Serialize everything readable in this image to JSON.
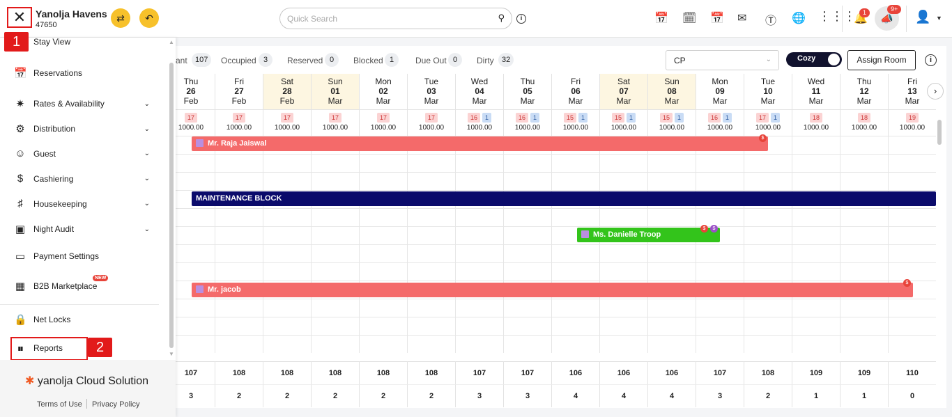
{
  "header": {
    "hotel_name": "Yanolja Havens",
    "hotel_id": "47650",
    "search_placeholder": "Quick Search",
    "notification_count": "1",
    "announcement_count": "9+"
  },
  "sidebar": {
    "items": [
      {
        "label": "Stay View",
        "icon": "stay-view-icon",
        "chevron": false
      },
      {
        "label": "Reservations",
        "icon": "calendar-icon",
        "chevron": false
      },
      {
        "label": "Rates & Availability",
        "icon": "rates-icon",
        "chevron": true
      },
      {
        "label": "Distribution",
        "icon": "distribution-icon",
        "chevron": true
      },
      {
        "label": "Guest",
        "icon": "guest-icon",
        "chevron": true
      },
      {
        "label": "Cashiering",
        "icon": "dollar-icon",
        "chevron": true
      },
      {
        "label": "Housekeeping",
        "icon": "housekeeping-icon",
        "chevron": true
      },
      {
        "label": "Night Audit",
        "icon": "night-audit-icon",
        "chevron": true
      },
      {
        "label": "Payment Settings",
        "icon": "payment-icon",
        "chevron": false
      },
      {
        "label": "B2B Marketplace",
        "icon": "b2b-icon",
        "chevron": false
      },
      {
        "label": "Net Locks",
        "icon": "lock-icon",
        "chevron": false
      },
      {
        "label": "Reports",
        "icon": "reports-icon",
        "chevron": false
      }
    ],
    "new_badge": "NEW",
    "brand": "yanolja Cloud Solution",
    "terms": "Terms of Use",
    "privacy": "Privacy Policy"
  },
  "annotations": {
    "marker1": "1",
    "marker2": "2"
  },
  "stats": [
    {
      "label": "ant",
      "value": "107"
    },
    {
      "label": "Occupied",
      "value": "3"
    },
    {
      "label": "Reserved",
      "value": "0"
    },
    {
      "label": "Blocked",
      "value": "1"
    },
    {
      "label": "Due Out",
      "value": "0"
    },
    {
      "label": "Dirty",
      "value": "32"
    }
  ],
  "toolbar": {
    "rate_plan": "CP",
    "view_toggle": "Cozy",
    "assign_room": "Assign Room"
  },
  "dates": [
    {
      "dow": "Thu",
      "day": "26",
      "mon": "Feb",
      "weekend": false,
      "avail": "17",
      "blocked": "",
      "rate": "1000.00",
      "vacant": "107",
      "occupied": "3"
    },
    {
      "dow": "Fri",
      "day": "27",
      "mon": "Feb",
      "weekend": false,
      "avail": "17",
      "blocked": "",
      "rate": "1000.00",
      "vacant": "108",
      "occupied": "2"
    },
    {
      "dow": "Sat",
      "day": "28",
      "mon": "Feb",
      "weekend": true,
      "avail": "17",
      "blocked": "",
      "rate": "1000.00",
      "vacant": "108",
      "occupied": "2"
    },
    {
      "dow": "Sun",
      "day": "01",
      "mon": "Mar",
      "weekend": true,
      "avail": "17",
      "blocked": "",
      "rate": "1000.00",
      "vacant": "108",
      "occupied": "2"
    },
    {
      "dow": "Mon",
      "day": "02",
      "mon": "Mar",
      "weekend": false,
      "avail": "17",
      "blocked": "",
      "rate": "1000.00",
      "vacant": "108",
      "occupied": "2"
    },
    {
      "dow": "Tue",
      "day": "03",
      "mon": "Mar",
      "weekend": false,
      "avail": "17",
      "blocked": "",
      "rate": "1000.00",
      "vacant": "108",
      "occupied": "2"
    },
    {
      "dow": "Wed",
      "day": "04",
      "mon": "Mar",
      "weekend": false,
      "avail": "16",
      "blocked": "1",
      "rate": "1000.00",
      "vacant": "107",
      "occupied": "3"
    },
    {
      "dow": "Thu",
      "day": "05",
      "mon": "Mar",
      "weekend": false,
      "avail": "16",
      "blocked": "1",
      "rate": "1000.00",
      "vacant": "107",
      "occupied": "3"
    },
    {
      "dow": "Fri",
      "day": "06",
      "mon": "Mar",
      "weekend": false,
      "avail": "15",
      "blocked": "1",
      "rate": "1000.00",
      "vacant": "106",
      "occupied": "4"
    },
    {
      "dow": "Sat",
      "day": "07",
      "mon": "Mar",
      "weekend": true,
      "avail": "15",
      "blocked": "1",
      "rate": "1000.00",
      "vacant": "106",
      "occupied": "4"
    },
    {
      "dow": "Sun",
      "day": "08",
      "mon": "Mar",
      "weekend": true,
      "avail": "15",
      "blocked": "1",
      "rate": "1000.00",
      "vacant": "106",
      "occupied": "4"
    },
    {
      "dow": "Mon",
      "day": "09",
      "mon": "Mar",
      "weekend": false,
      "avail": "16",
      "blocked": "1",
      "rate": "1000.00",
      "vacant": "107",
      "occupied": "3"
    },
    {
      "dow": "Tue",
      "day": "10",
      "mon": "Mar",
      "weekend": false,
      "avail": "17",
      "blocked": "1",
      "rate": "1000.00",
      "vacant": "108",
      "occupied": "2"
    },
    {
      "dow": "Wed",
      "day": "11",
      "mon": "Mar",
      "weekend": false,
      "avail": "18",
      "blocked": "",
      "rate": "1000.00",
      "vacant": "109",
      "occupied": "1"
    },
    {
      "dow": "Thu",
      "day": "12",
      "mon": "Mar",
      "weekend": false,
      "avail": "18",
      "blocked": "",
      "rate": "1000.00",
      "vacant": "109",
      "occupied": "1"
    },
    {
      "dow": "Fri",
      "day": "13",
      "mon": "Mar",
      "weekend": false,
      "avail": "19",
      "blocked": "",
      "rate": "1000.00",
      "vacant": "110",
      "occupied": "0"
    }
  ],
  "bookings": {
    "raja": {
      "guest": "Mr. Raja Jaiswal",
      "color": "#f46a6a"
    },
    "maintenance": {
      "guest": "MAINTENANCE BLOCK",
      "color": "#0b0b6b"
    },
    "danielle": {
      "guest": "Ms. Danielle Troop",
      "color": "#33c41b"
    },
    "jacob": {
      "guest": "Mr. jacob",
      "color": "#f46a6a"
    }
  },
  "indicator_glyph": "$"
}
